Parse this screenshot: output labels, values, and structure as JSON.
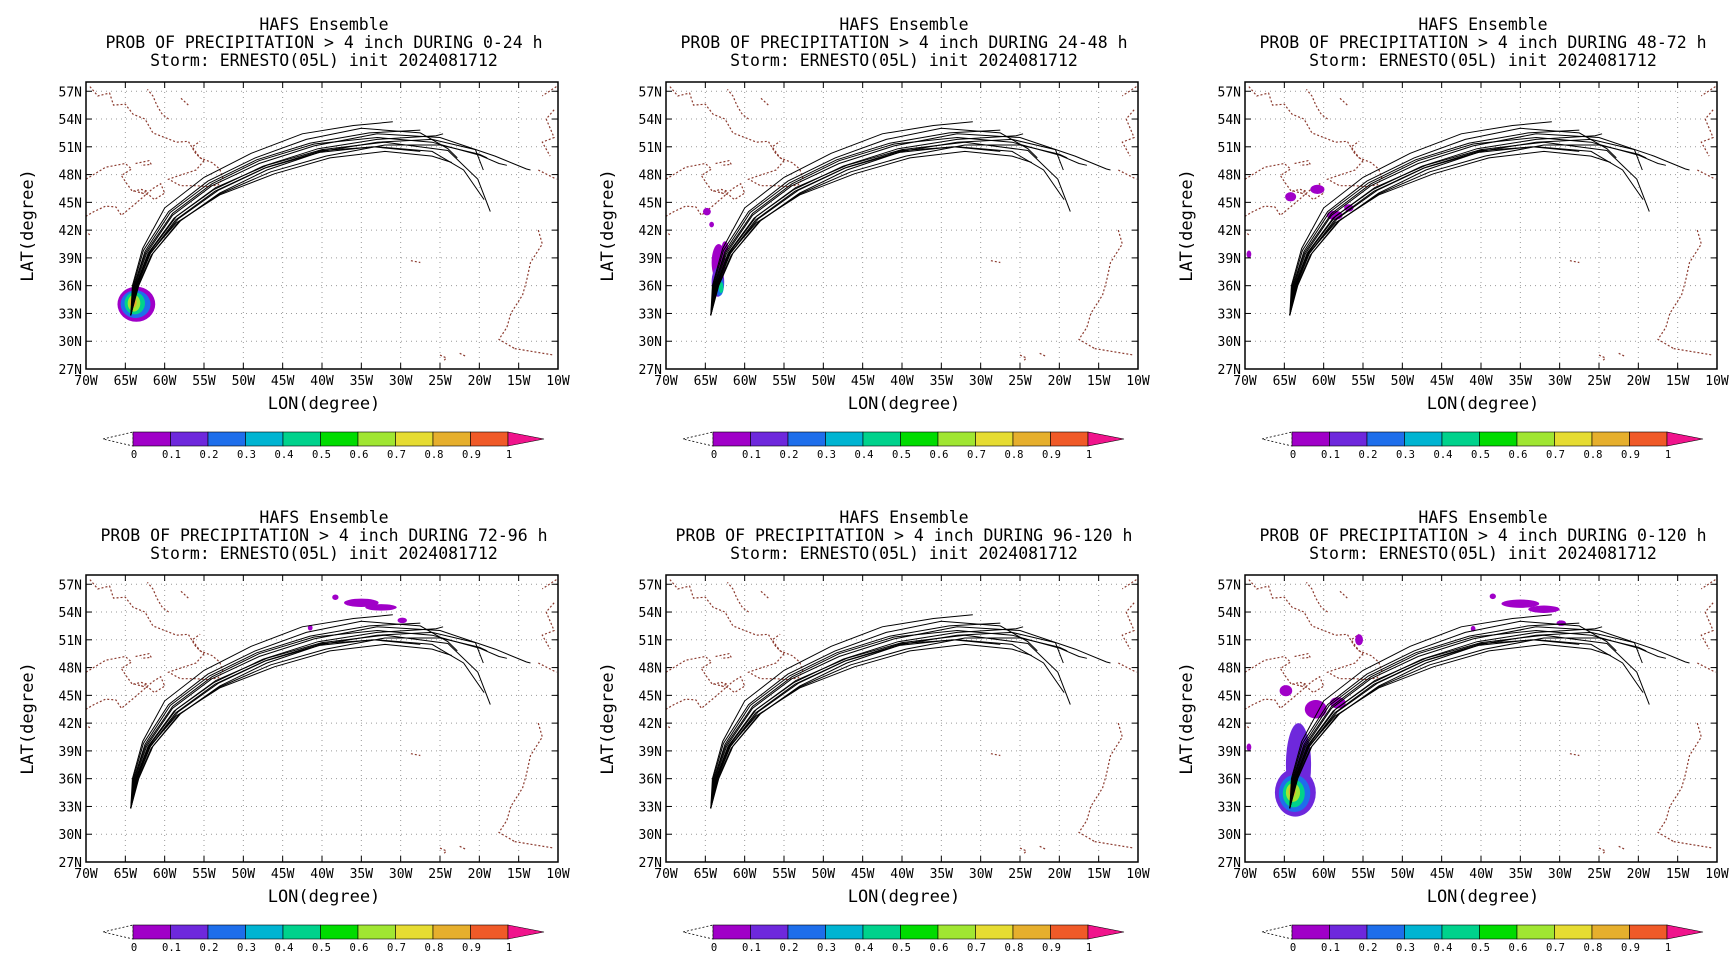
{
  "figure": {
    "panels": [
      {
        "title_lines": [
          "HAFS Ensemble",
          "PROB OF PRECIPITATION > 4 inch DURING  0-24 h",
          "Storm: ERNESTO(05L) init 2024081712"
        ],
        "period": "0-24 h",
        "precip": [
          {
            "lon": -63.6,
            "lat": 34.0,
            "rlon": 2.4,
            "rlat": 1.9,
            "p": 0.08
          },
          {
            "lon": -63.7,
            "lat": 34.0,
            "rlon": 1.9,
            "rlat": 1.5,
            "p": 0.25
          },
          {
            "lon": -63.8,
            "lat": 34.1,
            "rlon": 1.3,
            "rlat": 1.2,
            "p": 0.45
          },
          {
            "lon": -63.9,
            "lat": 34.1,
            "rlon": 0.8,
            "rlat": 0.9,
            "p": 0.65
          },
          {
            "lon": -64.0,
            "lat": 34.2,
            "rlon": 0.45,
            "rlat": 0.55,
            "p": 0.85
          }
        ]
      },
      {
        "title_lines": [
          "HAFS Ensemble",
          "PROB OF PRECIPITATION > 4 inch DURING 24-48 h",
          "Storm: ERNESTO(05L) init 2024081712"
        ],
        "period": "24-48 h",
        "precip": [
          {
            "lon": -63.3,
            "lat": 38.5,
            "rlon": 0.9,
            "rlat": 2.0,
            "p": 0.06
          },
          {
            "lon": -63.4,
            "lat": 36.4,
            "rlon": 0.8,
            "rlat": 1.6,
            "p": 0.12
          },
          {
            "lon": -63.2,
            "lat": 36.0,
            "rlon": 0.55,
            "rlat": 1.1,
            "p": 0.25
          },
          {
            "lon": -63.0,
            "lat": 35.8,
            "rlon": 0.3,
            "rlat": 0.6,
            "p": 0.4
          },
          {
            "lon": -62.5,
            "lat": 40.2,
            "rlon": 0.4,
            "rlat": 0.6,
            "p": 0.05
          },
          {
            "lon": -64.8,
            "lat": 44.0,
            "rlon": 0.5,
            "rlat": 0.4,
            "p": 0.05
          },
          {
            "lon": -64.2,
            "lat": 42.6,
            "rlon": 0.3,
            "rlat": 0.3,
            "p": 0.05
          }
        ]
      },
      {
        "title_lines": [
          "HAFS Ensemble",
          "PROB OF PRECIPITATION > 4 inch DURING 48-72 h",
          "Storm: ERNESTO(05L) init 2024081712"
        ],
        "period": "48-72 h",
        "precip": [
          {
            "lon": -64.2,
            "lat": 45.6,
            "rlon": 0.7,
            "rlat": 0.5,
            "p": 0.05
          },
          {
            "lon": -60.8,
            "lat": 46.4,
            "rlon": 0.9,
            "rlat": 0.5,
            "p": 0.06
          },
          {
            "lon": -58.6,
            "lat": 43.6,
            "rlon": 1.0,
            "rlat": 0.5,
            "p": 0.05
          },
          {
            "lon": -56.8,
            "lat": 44.4,
            "rlon": 0.6,
            "rlat": 0.4,
            "p": 0.05
          },
          {
            "lon": -69.5,
            "lat": 39.4,
            "rlon": 0.3,
            "rlat": 0.4,
            "p": 0.05
          }
        ]
      },
      {
        "title_lines": [
          "HAFS Ensemble",
          "PROB OF PRECIPITATION > 4 inch DURING 72-96 h",
          "Storm: ERNESTO(05L) init 2024081712"
        ],
        "period": "72-96 h",
        "precip": [
          {
            "lon": -35.0,
            "lat": 55.0,
            "rlon": 2.2,
            "rlat": 0.45,
            "p": 0.06
          },
          {
            "lon": -32.5,
            "lat": 54.5,
            "rlon": 2.0,
            "rlat": 0.35,
            "p": 0.08
          },
          {
            "lon": -38.3,
            "lat": 55.6,
            "rlon": 0.4,
            "rlat": 0.3,
            "p": 0.05
          },
          {
            "lon": -29.8,
            "lat": 53.1,
            "rlon": 0.6,
            "rlat": 0.3,
            "p": 0.05
          },
          {
            "lon": -41.5,
            "lat": 52.3,
            "rlon": 0.3,
            "rlat": 0.3,
            "p": 0.05
          }
        ]
      },
      {
        "title_lines": [
          "HAFS Ensemble",
          "PROB OF PRECIPITATION > 4 inch DURING 96-120 h",
          "Storm: ERNESTO(05L) init 2024081712"
        ],
        "period": "96-120 h",
        "precip": []
      },
      {
        "title_lines": [
          "HAFS Ensemble",
          "PROB OF PRECIPITATION > 4 inch DURING 0-120 h",
          "Storm: ERNESTO(05L) init 2024081712"
        ],
        "period": "0-120 h",
        "precip": [
          {
            "lon": -63.2,
            "lat": 37.5,
            "rlon": 1.6,
            "rlat": 4.5,
            "p": 0.1
          },
          {
            "lon": -63.6,
            "lat": 34.5,
            "rlon": 2.6,
            "rlat": 2.6,
            "p": 0.15
          },
          {
            "lon": -63.7,
            "lat": 34.4,
            "rlon": 2.0,
            "rlat": 2.0,
            "p": 0.28
          },
          {
            "lon": -63.8,
            "lat": 34.4,
            "rlon": 1.4,
            "rlat": 1.5,
            "p": 0.45
          },
          {
            "lon": -63.9,
            "lat": 34.5,
            "rlon": 0.9,
            "rlat": 1.0,
            "p": 0.65
          },
          {
            "lon": -64.0,
            "lat": 34.6,
            "rlon": 0.45,
            "rlat": 0.55,
            "p": 0.85
          },
          {
            "lon": -61.0,
            "lat": 43.5,
            "rlon": 1.4,
            "rlat": 1.0,
            "p": 0.06
          },
          {
            "lon": -64.8,
            "lat": 45.5,
            "rlon": 0.8,
            "rlat": 0.6,
            "p": 0.06
          },
          {
            "lon": -58.2,
            "lat": 44.2,
            "rlon": 1.0,
            "rlat": 0.6,
            "p": 0.06
          },
          {
            "lon": -35.0,
            "lat": 54.9,
            "rlon": 2.4,
            "rlat": 0.45,
            "p": 0.07
          },
          {
            "lon": -32.0,
            "lat": 54.3,
            "rlon": 2.0,
            "rlat": 0.4,
            "p": 0.08
          },
          {
            "lon": -38.5,
            "lat": 55.7,
            "rlon": 0.4,
            "rlat": 0.3,
            "p": 0.05
          },
          {
            "lon": -29.8,
            "lat": 52.8,
            "rlon": 0.6,
            "rlat": 0.3,
            "p": 0.05
          },
          {
            "lon": -55.5,
            "lat": 51.0,
            "rlon": 0.5,
            "rlat": 0.6,
            "p": 0.05
          },
          {
            "lon": -41.0,
            "lat": 52.2,
            "rlon": 0.3,
            "rlat": 0.3,
            "p": 0.05
          },
          {
            "lon": -69.5,
            "lat": 39.4,
            "rlon": 0.3,
            "rlat": 0.4,
            "p": 0.05
          }
        ]
      }
    ]
  },
  "map": {
    "lon_range": [
      -70,
      -10
    ],
    "lat_range": [
      27,
      58
    ],
    "lon_ticks": [
      -70,
      -65,
      -60,
      -55,
      -50,
      -45,
      -40,
      -35,
      -30,
      -25,
      -20,
      -15,
      -10
    ],
    "lon_tick_labels": [
      "70W",
      "65W",
      "60W",
      "55W",
      "50W",
      "45W",
      "40W",
      "35W",
      "30W",
      "25W",
      "20W",
      "15W",
      "10W"
    ],
    "lat_ticks": [
      27,
      30,
      33,
      36,
      39,
      42,
      45,
      48,
      51,
      54,
      57
    ],
    "lat_tick_labels": [
      "27N",
      "30N",
      "33N",
      "36N",
      "39N",
      "42N",
      "45N",
      "48N",
      "51N",
      "54N",
      "57N"
    ],
    "xlabel": "LON(degree)",
    "ylabel": "LAT(degree)",
    "gridlines": true,
    "coastline_color": "#8b3a2e",
    "track_color": "#000000"
  },
  "tracks": {
    "start": [
      -64.3,
      32.8
    ],
    "paths": [
      [
        [
          -64.3,
          32.8
        ],
        [
          -63.3,
          36
        ],
        [
          -61.5,
          39.5
        ],
        [
          -58,
          43
        ],
        [
          -53,
          46
        ],
        [
          -47,
          48.5
        ],
        [
          -40,
          50.5
        ],
        [
          -33,
          51.5
        ],
        [
          -26,
          51.8
        ],
        [
          -20.5,
          50.7
        ],
        [
          -19.5,
          48.5
        ]
      ],
      [
        [
          -64.3,
          32.8
        ],
        [
          -63.5,
          36
        ],
        [
          -61.8,
          39.5
        ],
        [
          -58.3,
          43.2
        ],
        [
          -53.2,
          46.3
        ],
        [
          -47,
          48.8
        ],
        [
          -40,
          50.6
        ],
        [
          -33,
          51
        ],
        [
          -26,
          50.5
        ],
        [
          -22,
          48.5
        ],
        [
          -19.4,
          45.3
        ]
      ],
      [
        [
          -64.3,
          32.8
        ],
        [
          -63.7,
          36
        ],
        [
          -62,
          39.5
        ],
        [
          -58.5,
          43.5
        ],
        [
          -53.5,
          46.6
        ],
        [
          -47,
          49
        ],
        [
          -40,
          50.7
        ],
        [
          -32,
          51.5
        ],
        [
          -24,
          50.6
        ],
        [
          -20.2,
          47.5
        ],
        [
          -18.6,
          44
        ]
      ],
      [
        [
          -64.3,
          32.8
        ],
        [
          -63.8,
          36
        ],
        [
          -62.3,
          39.5
        ],
        [
          -59,
          43.6
        ],
        [
          -54,
          46.8
        ],
        [
          -48,
          49.2
        ],
        [
          -41,
          51.1
        ],
        [
          -33,
          52.4
        ],
        [
          -25,
          52
        ],
        [
          -18,
          50
        ],
        [
          -14,
          48.6
        ],
        [
          -13.5,
          48.5
        ]
      ],
      [
        [
          -64.3,
          32.8
        ],
        [
          -63.9,
          36
        ],
        [
          -62.4,
          39.6
        ],
        [
          -59,
          43.8
        ],
        [
          -54,
          47
        ],
        [
          -48,
          49.5
        ],
        [
          -41,
          51.3
        ],
        [
          -33,
          52
        ],
        [
          -26,
          51.5
        ],
        [
          -20,
          50.1
        ],
        [
          -17.5,
          49.2
        ],
        [
          -16.5,
          49
        ]
      ],
      [
        [
          -64.3,
          32.8
        ],
        [
          -63.6,
          36
        ],
        [
          -62,
          39.4
        ],
        [
          -58.5,
          42.8
        ],
        [
          -53,
          45.8
        ],
        [
          -46,
          48.1
        ],
        [
          -39,
          49.8
        ],
        [
          -32,
          50.5
        ],
        [
          -26,
          50
        ],
        [
          -23.5,
          49.3
        ]
      ],
      [
        [
          -64.3,
          32.8
        ],
        [
          -64,
          36
        ],
        [
          -62.7,
          39.8
        ],
        [
          -59.5,
          44
        ],
        [
          -54.5,
          47.3
        ],
        [
          -48.5,
          49.8
        ],
        [
          -42,
          51.8
        ],
        [
          -35,
          53
        ],
        [
          -27.5,
          52.5
        ],
        [
          -24,
          50.8
        ],
        [
          -22.8,
          49.8
        ]
      ],
      [
        [
          -64.3,
          32.8
        ],
        [
          -64.1,
          36
        ],
        [
          -62.8,
          40
        ],
        [
          -60,
          44.4
        ],
        [
          -55,
          47.7
        ],
        [
          -49,
          50.3
        ],
        [
          -42.5,
          52.4
        ],
        [
          -36,
          53.3
        ],
        [
          -31,
          53.7
        ]
      ],
      [
        [
          -64.3,
          32.8
        ],
        [
          -63.9,
          36
        ],
        [
          -62.5,
          39.7
        ],
        [
          -59.3,
          43.9
        ],
        [
          -54.3,
          47.1
        ],
        [
          -48.3,
          49.6
        ],
        [
          -41.5,
          51.4
        ],
        [
          -34,
          52.5
        ],
        [
          -27.5,
          52.8
        ]
      ],
      [
        [
          -64.3,
          32.8
        ],
        [
          -63.7,
          36
        ],
        [
          -62.1,
          39.5
        ],
        [
          -58.8,
          43.3
        ],
        [
          -53.7,
          46.4
        ],
        [
          -47.5,
          48.9
        ],
        [
          -40.5,
          50.8
        ],
        [
          -33,
          51.8
        ],
        [
          -25.5,
          52.2
        ],
        [
          -24.6,
          52.4
        ]
      ],
      [
        [
          -64.3,
          32.8
        ],
        [
          -63.4,
          36
        ],
        [
          -61.7,
          39.3
        ],
        [
          -58.2,
          42.9
        ],
        [
          -53,
          45.9
        ],
        [
          -46.5,
          48.3
        ],
        [
          -39.5,
          50
        ],
        [
          -32,
          51.2
        ],
        [
          -25,
          51.2
        ],
        [
          -20,
          50.2
        ],
        [
          -19,
          49.8
        ]
      ],
      [
        [
          -64.3,
          32.8
        ],
        [
          -63.5,
          36
        ],
        [
          -61.9,
          39.4
        ],
        [
          -58.6,
          43.1
        ],
        [
          -53.6,
          46.2
        ],
        [
          -47.3,
          48.7
        ],
        [
          -40.3,
          50.4
        ],
        [
          -33.5,
          51
        ],
        [
          -27.5,
          50.5
        ]
      ]
    ]
  },
  "colorbar": {
    "ticks": [
      "0",
      "0.1",
      "0.2",
      "0.3",
      "0.4",
      "0.5",
      "0.6",
      "0.7",
      "0.8",
      "0.9",
      "1"
    ],
    "colors": [
      "#a000c8",
      "#6e28dc",
      "#1e6eeb",
      "#00b4d2",
      "#00d28c",
      "#00dc00",
      "#a0e632",
      "#e6dc32",
      "#e6af2d",
      "#f05a28",
      "#f0148c"
    ]
  }
}
